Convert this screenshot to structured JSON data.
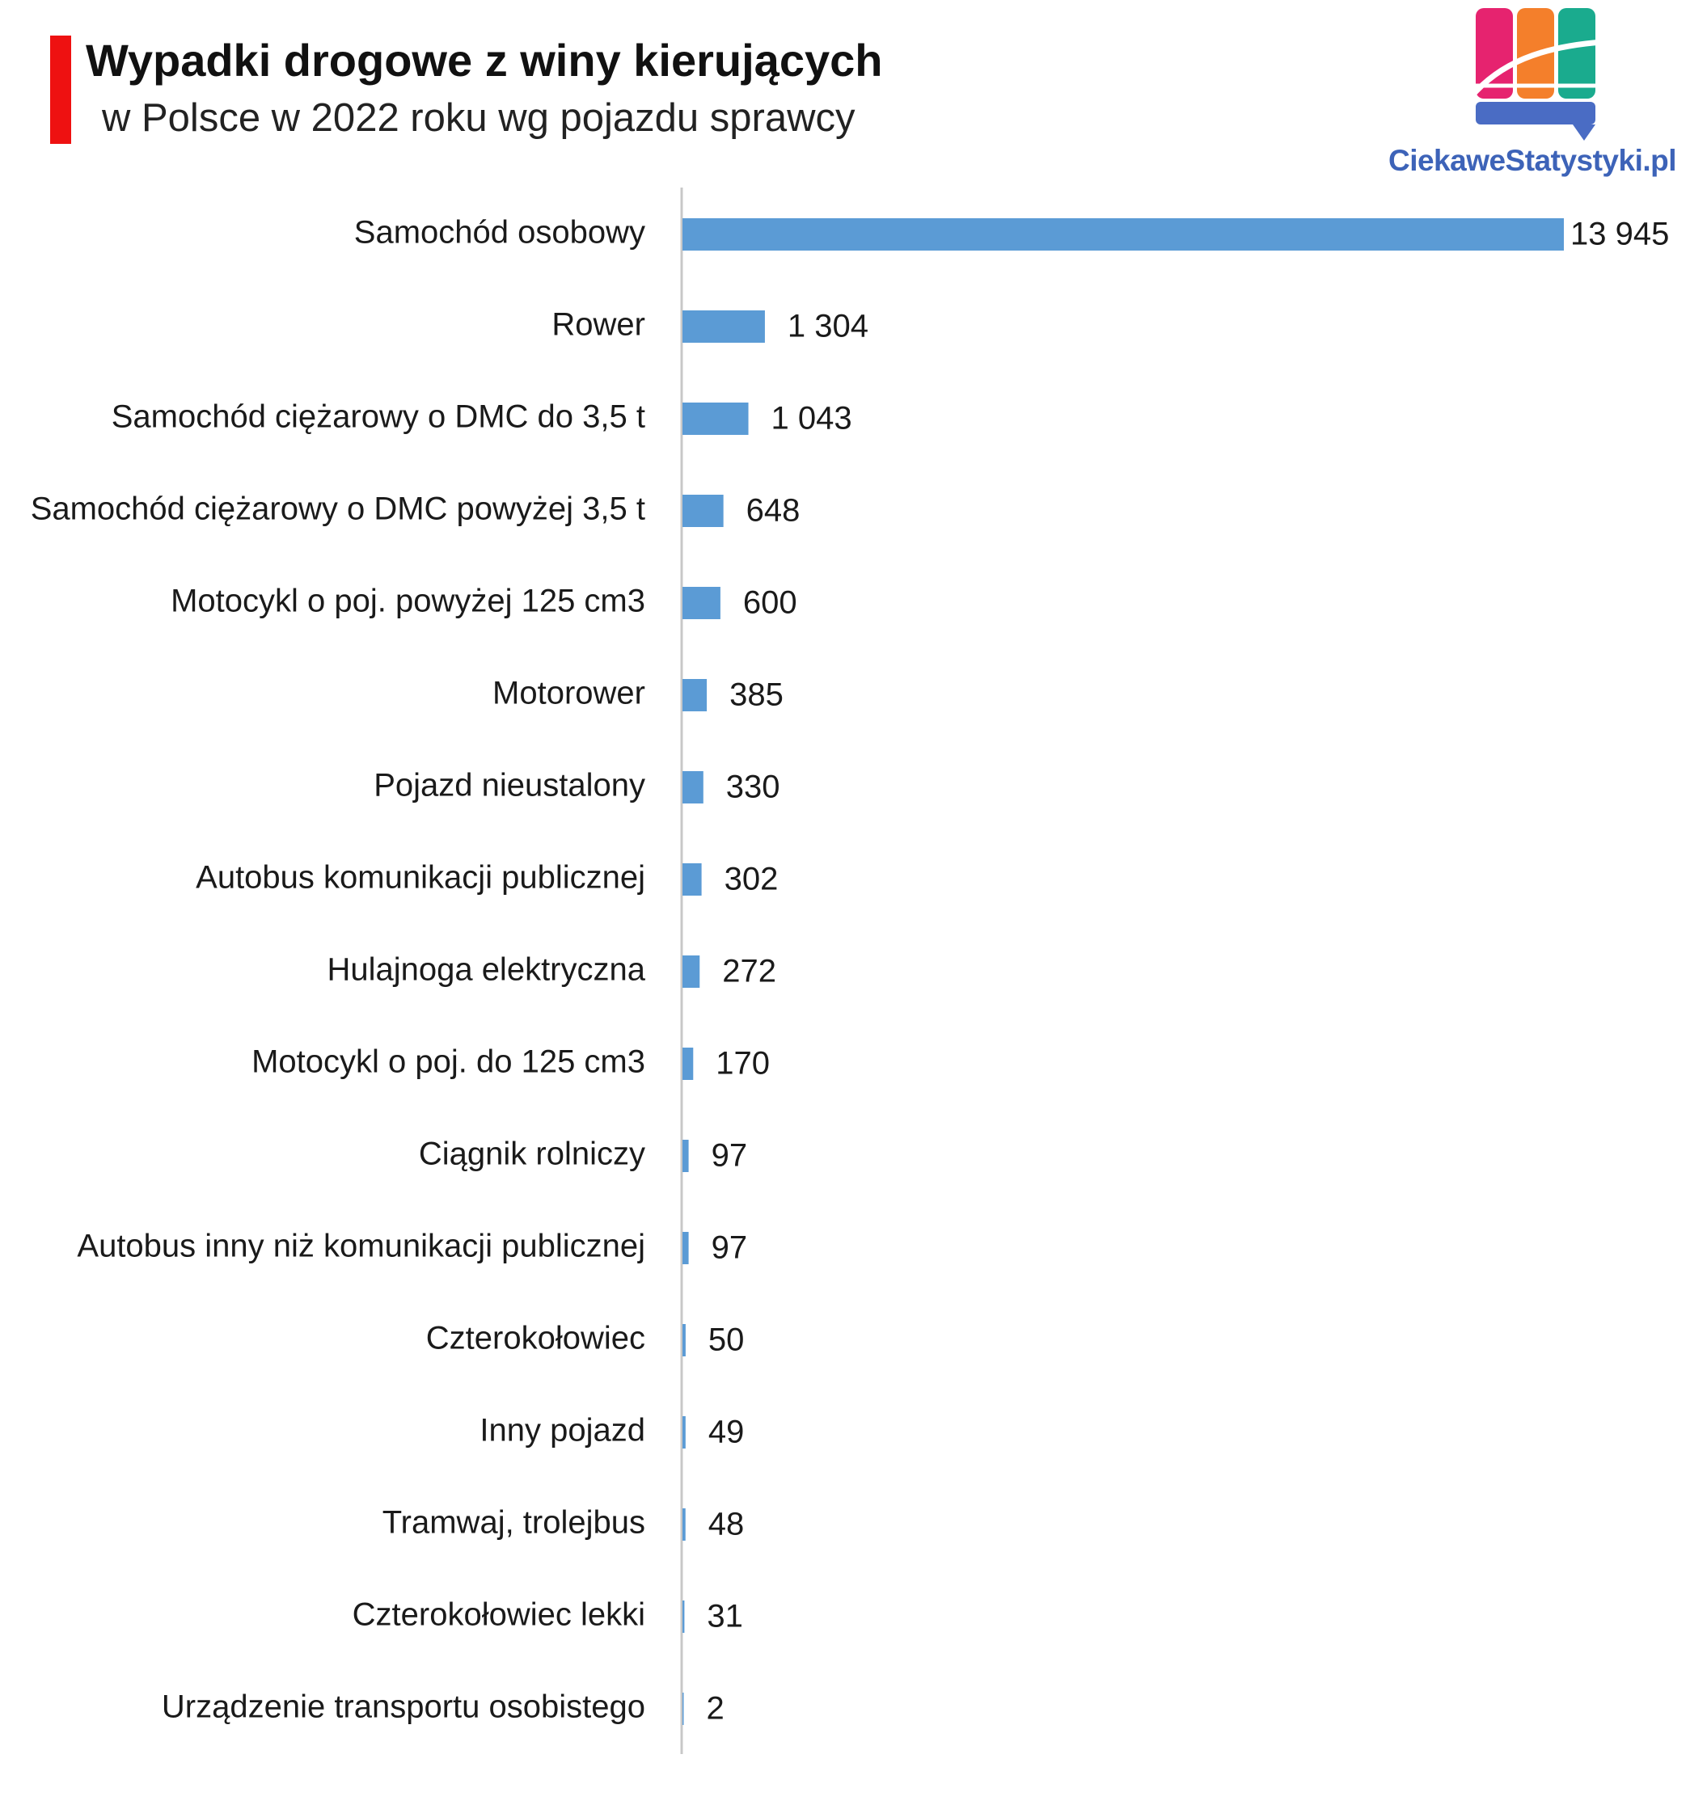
{
  "header": {
    "title": "Wypadki drogowe z winy kierujących",
    "subtitle": "w Polsce w 2022 roku wg pojazdu sprawcy"
  },
  "logo": {
    "text": "CiekaweStatystyki.pl",
    "colors": [
      "#e6236f",
      "#f47f2b",
      "#1aab8e",
      "#4a6cc4"
    ]
  },
  "colors": {
    "bar": "#5b9bd5",
    "title_accent": "#ee1111",
    "axis": "#c8c8c8"
  },
  "chart_data": {
    "type": "bar",
    "orientation": "horizontal",
    "title": "Wypadki drogowe z winy kierujących",
    "subtitle": "w Polsce w 2022 roku wg pojazdu sprawcy",
    "xlabel": "",
    "ylabel": "",
    "grid": false,
    "legend": "none",
    "xlim": [
      0,
      13945
    ],
    "categories": [
      "Samochód osobowy",
      "Rower",
      "Samochód ciężarowy o DMC do 3,5 t",
      "Samochód ciężarowy o DMC powyżej 3,5 t",
      "Motocykl o poj. powyżej 125 cm3",
      "Motorower",
      "Pojazd nieustalony",
      "Autobus komunikacji publicznej",
      "Hulajnoga elektryczna",
      "Motocykl o poj. do 125 cm3",
      "Ciągnik rolniczy",
      "Autobus inny niż komunikacji publicznej",
      "Czterokołowiec",
      "Inny pojazd",
      "Tramwaj, trolejbus",
      "Czterokołowiec lekki",
      "Urządzenie transportu osobistego"
    ],
    "values": [
      13945,
      1304,
      1043,
      648,
      600,
      385,
      330,
      302,
      272,
      170,
      97,
      97,
      50,
      49,
      48,
      31,
      2
    ],
    "value_labels": [
      "13 945",
      "1 304",
      "1 043",
      "648",
      "600",
      "385",
      "330",
      "302",
      "272",
      "170",
      "97",
      "97",
      "50",
      "49",
      "48",
      "31",
      "2"
    ]
  }
}
